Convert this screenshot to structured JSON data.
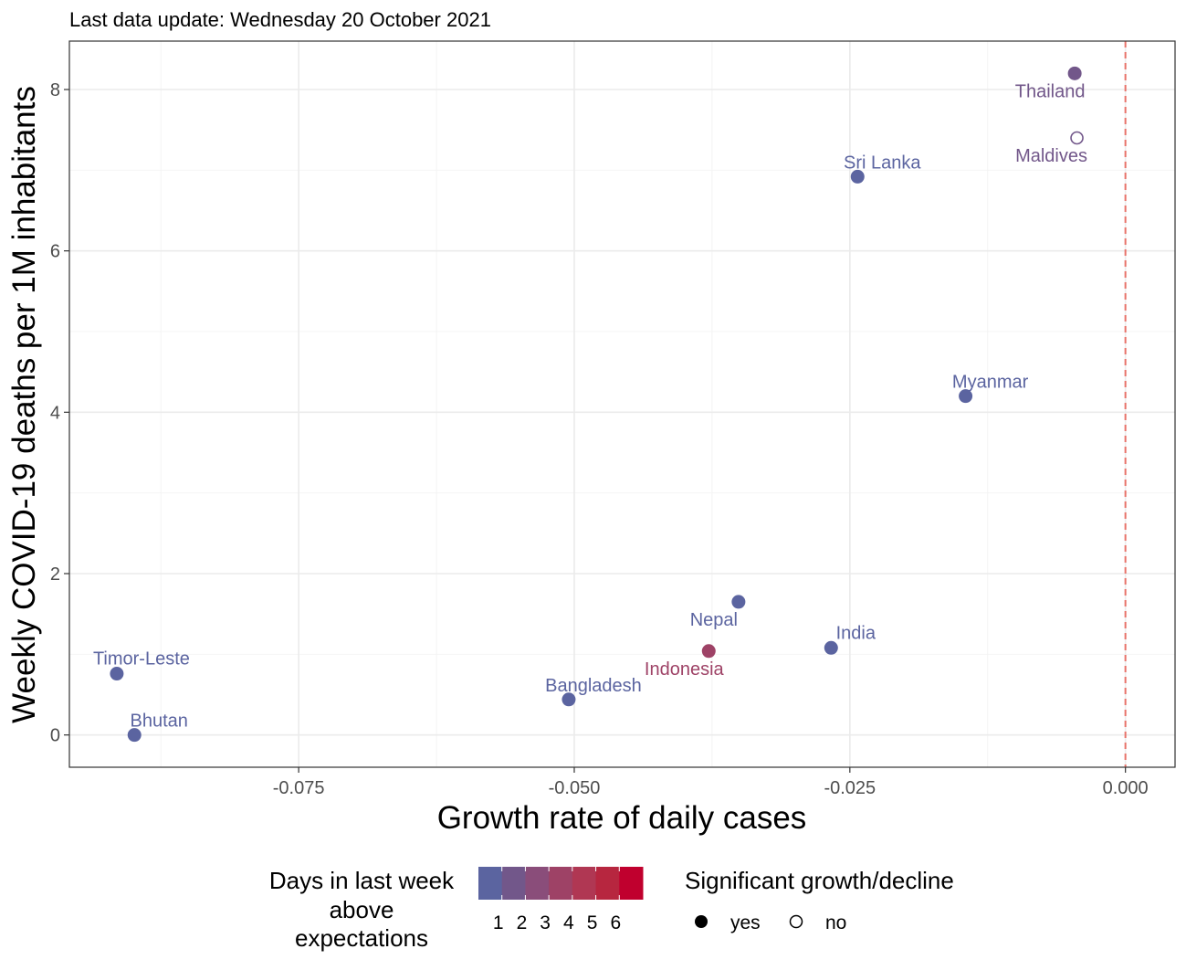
{
  "header": {
    "update_text": "Last data update: Wednesday 20 October 2021"
  },
  "colors": {
    "scale": [
      "#5b64a0",
      "#72578a",
      "#8a4d7a",
      "#9e4266",
      "#b03753",
      "#b7263f",
      "#c0002e"
    ],
    "vline": "#e8736a",
    "panel_border": "#333333",
    "grid_major": "#ebebeb",
    "grid_minor": "#f4f4f4"
  },
  "chart_data": {
    "type": "scatter",
    "title": "Last data update: Wednesday 20 October 2021",
    "xlabel": "Growth rate of daily cases",
    "ylabel": "Weekly COVID-19 deaths per 1M inhabitants",
    "xlim": [
      -0.0958,
      0.0045
    ],
    "ylim": [
      -0.4,
      8.6
    ],
    "x_ticks": [
      -0.075,
      -0.05,
      -0.025,
      0.0
    ],
    "x_tick_labels": [
      "-0.075",
      "-0.050",
      "-0.025",
      "0.000"
    ],
    "y_ticks": [
      0,
      2,
      4,
      6,
      8
    ],
    "y_tick_labels": [
      "0",
      "2",
      "4",
      "6",
      "8"
    ],
    "vline_x": 0,
    "vline_style": "dashed",
    "grid": true,
    "points": [
      {
        "label": "Thailand",
        "x": -0.0046,
        "y": 8.2,
        "days": 2,
        "significant": "yes"
      },
      {
        "label": "Maldives",
        "x": -0.0044,
        "y": 7.4,
        "days": 2,
        "significant": "no"
      },
      {
        "label": "Sri Lanka",
        "x": -0.0243,
        "y": 6.92,
        "days": 1,
        "significant": "yes"
      },
      {
        "label": "Myanmar",
        "x": -0.0145,
        "y": 4.2,
        "days": 1,
        "significant": "yes"
      },
      {
        "label": "Nepal",
        "x": -0.0351,
        "y": 1.65,
        "days": 1,
        "significant": "yes"
      },
      {
        "label": "India",
        "x": -0.0267,
        "y": 1.08,
        "days": 1,
        "significant": "yes"
      },
      {
        "label": "Indonesia",
        "x": -0.0378,
        "y": 1.04,
        "days": 4,
        "significant": "yes"
      },
      {
        "label": "Bangladesh",
        "x": -0.0505,
        "y": 0.44,
        "days": 1,
        "significant": "yes"
      },
      {
        "label": "Timor-Leste",
        "x": -0.0915,
        "y": 0.76,
        "days": 1,
        "significant": "yes"
      },
      {
        "label": "Bhutan",
        "x": -0.0899,
        "y": 0.0,
        "days": 1,
        "significant": "yes"
      }
    ],
    "legend": {
      "position": "bottom",
      "color_title_lines": [
        "Days in last week",
        "above",
        "expectations"
      ],
      "color_labels": [
        "1",
        "2",
        "3",
        "4",
        "5",
        "6"
      ],
      "shape_title": "Significant growth/decline",
      "shape_labels": [
        "yes",
        "no"
      ]
    }
  }
}
